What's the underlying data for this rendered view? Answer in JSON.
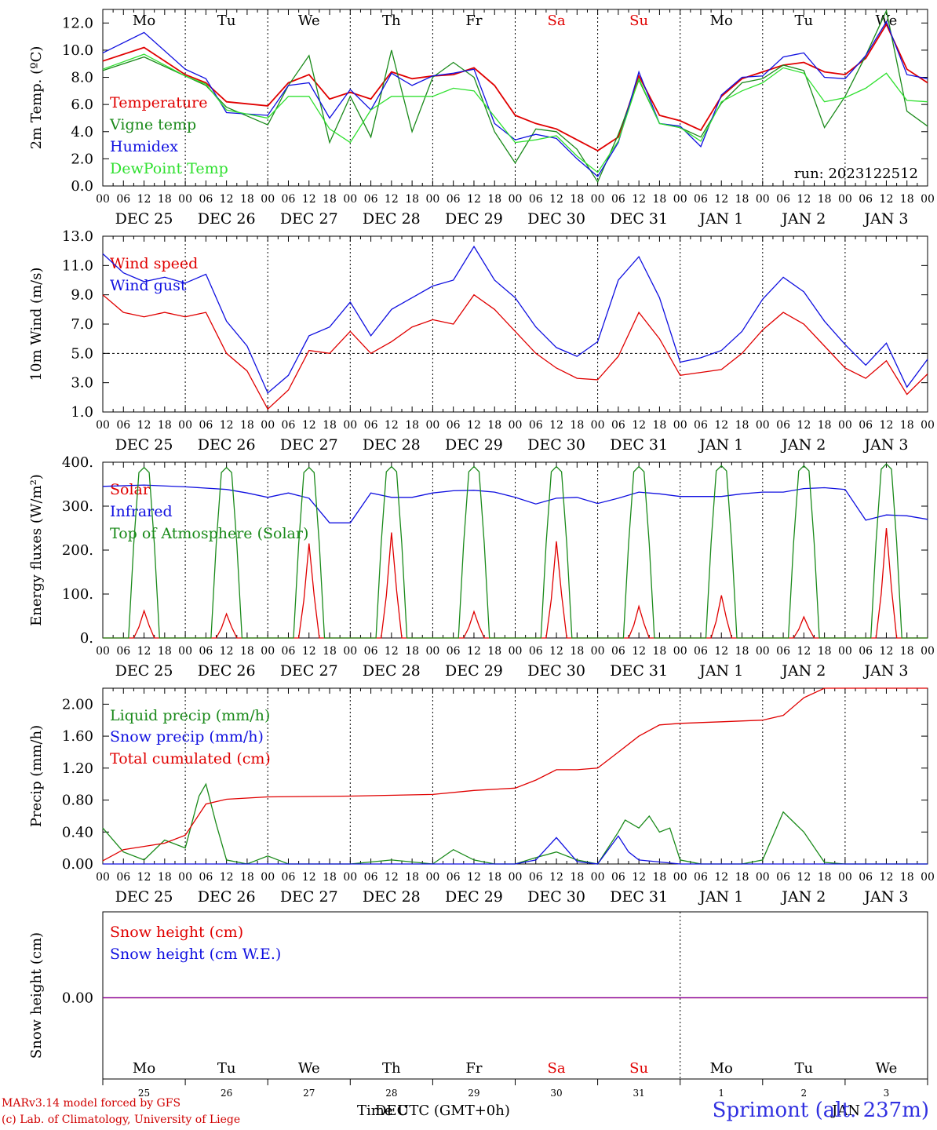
{
  "run_label": "run: 2023122512",
  "weekdays_top": [
    {
      "label": "Mo",
      "color": "#000000"
    },
    {
      "label": "Tu",
      "color": "#000000"
    },
    {
      "label": "We",
      "color": "#000000"
    },
    {
      "label": "Th",
      "color": "#000000"
    },
    {
      "label": "Fr",
      "color": "#000000"
    },
    {
      "label": "Sa",
      "color": "#e00000"
    },
    {
      "label": "Su",
      "color": "#e00000"
    },
    {
      "label": "Mo",
      "color": "#000000"
    },
    {
      "label": "Tu",
      "color": "#000000"
    },
    {
      "label": "We",
      "color": "#000000"
    }
  ],
  "hour_ticks": [
    "00",
    "06",
    "12",
    "18"
  ],
  "date_labels": [
    "DEC 25",
    "DEC 26",
    "DEC 27",
    "DEC 28",
    "DEC 29",
    "DEC 30",
    "DEC 31",
    "JAN  1",
    "JAN  2",
    "JAN  3"
  ],
  "bottom_day_numbers": [
    "25",
    "26",
    "27",
    "28",
    "29",
    "30",
    "31",
    "1",
    "2",
    "3"
  ],
  "footer": {
    "model": "MARv3.14 model forced by GFS",
    "lab": "(c) Lab. of Climatology, University of Liege",
    "xlabel": "Time UTC (GMT+0h)",
    "month_dec": "DEC",
    "month_jan": "JAN",
    "station": "Sprimont (alt. 237m)"
  },
  "colors": {
    "red": "#e00000",
    "green": "#1a8a1a",
    "blue": "#1010e0",
    "light_green": "#30e030",
    "purple": "#8000a0"
  },
  "chart_data": [
    {
      "type": "line",
      "ylabel": "2m Temp. (ºC)",
      "ylim": [
        0,
        13
      ],
      "yticks": [
        "0.0",
        "2.0",
        "4.0",
        "6.0",
        "8.0",
        "10.0",
        "12.0"
      ],
      "x_unit": "hours since DEC 25 00 UTC",
      "series": [
        {
          "name": "Temperature",
          "color": "#e00000",
          "x": [
            0,
            12,
            24,
            30,
            36,
            48,
            54,
            60,
            66,
            72,
            78,
            84,
            90,
            96,
            102,
            108,
            114,
            120,
            126,
            132,
            138,
            144,
            150,
            156,
            162,
            168,
            174,
            180,
            186,
            192,
            198,
            204,
            210,
            216,
            222,
            228,
            234,
            240,
            246,
            252,
            258
          ],
          "y": [
            9.2,
            10.2,
            8.2,
            7.6,
            6.2,
            5.9,
            7.6,
            8.2,
            6.4,
            6.9,
            6.4,
            8.4,
            7.9,
            8.1,
            8.2,
            8.7,
            7.4,
            5.2,
            4.6,
            4.2,
            3.4,
            2.6,
            3.6,
            8.1,
            5.2,
            4.8,
            4.1,
            6.6,
            7.9,
            8.4,
            8.9,
            9.1,
            8.4,
            8.2,
            9.4,
            11.9,
            8.6,
            7.6,
            null,
            null,
            null
          ]
        },
        {
          "name": "Vigne temp",
          "color": "#1a8a1a",
          "x": [
            0,
            12,
            24,
            30,
            36,
            48,
            54,
            60,
            66,
            72,
            78,
            84,
            90,
            96,
            102,
            108,
            114,
            120,
            126,
            132,
            138,
            144,
            150,
            156,
            162,
            168,
            174,
            180,
            186,
            192,
            198,
            204,
            210,
            216,
            222,
            228,
            234,
            240
          ],
          "y": [
            8.5,
            9.5,
            8.1,
            7.4,
            5.8,
            4.5,
            7.4,
            9.6,
            3.2,
            6.6,
            3.6,
            10.0,
            4.0,
            8.0,
            9.1,
            8.0,
            4.0,
            1.7,
            4.2,
            4.0,
            2.7,
            0.3,
            3.8,
            7.8,
            4.6,
            4.3,
            3.6,
            6.1,
            7.6,
            7.9,
            8.9,
            8.5,
            4.3,
            6.6,
            9.6,
            12.9,
            5.5,
            4.4
          ]
        },
        {
          "name": "Humidex",
          "color": "#1010e0",
          "x": [
            0,
            12,
            24,
            30,
            36,
            48,
            54,
            60,
            66,
            72,
            78,
            84,
            90,
            96,
            102,
            108,
            114,
            120,
            126,
            132,
            138,
            144,
            150,
            156,
            162,
            168,
            174,
            180,
            186,
            192,
            198,
            204,
            210,
            216,
            222,
            228,
            234,
            240
          ],
          "y": [
            9.8,
            11.3,
            8.6,
            7.9,
            5.4,
            5.2,
            7.4,
            7.6,
            5.0,
            7.1,
            5.6,
            8.3,
            7.4,
            8.1,
            8.3,
            8.6,
            4.6,
            3.4,
            3.8,
            3.5,
            2.0,
            0.7,
            3.2,
            8.4,
            4.6,
            4.4,
            2.9,
            6.7,
            8.0,
            8.1,
            9.5,
            9.8,
            8.0,
            7.9,
            9.6,
            12.1,
            8.2,
            7.9
          ]
        },
        {
          "name": "DewPoint Temp",
          "color": "#30e030",
          "x": [
            0,
            12,
            24,
            30,
            36,
            48,
            54,
            60,
            66,
            72,
            78,
            84,
            90,
            96,
            102,
            108,
            114,
            120,
            126,
            132,
            138,
            144,
            150,
            156,
            162,
            168,
            174,
            180,
            186,
            192,
            198,
            204,
            210,
            216,
            222,
            228,
            234,
            240
          ],
          "y": [
            8.6,
            9.7,
            8.1,
            7.5,
            5.6,
            5.0,
            6.6,
            6.6,
            4.2,
            3.2,
            5.6,
            6.6,
            6.6,
            6.6,
            7.2,
            7.0,
            5.1,
            3.2,
            3.4,
            3.7,
            2.2,
            1.0,
            3.3,
            7.9,
            4.6,
            4.3,
            3.3,
            6.2,
            7.0,
            7.6,
            8.7,
            8.3,
            6.2,
            6.5,
            7.2,
            8.3,
            6.3,
            6.2
          ]
        }
      ]
    },
    {
      "type": "line",
      "ylabel": "10m Wind (m/s)",
      "ylim": [
        1,
        13
      ],
      "yticks": [
        "1.0",
        "3.0",
        "5.0",
        "7.0",
        "9.0",
        "11.0",
        "13.0"
      ],
      "reference_line": 5,
      "series": [
        {
          "name": "Wind speed",
          "color": "#e00000",
          "x": [
            0,
            6,
            12,
            18,
            24,
            30,
            36,
            42,
            48,
            54,
            60,
            66,
            72,
            78,
            84,
            90,
            96,
            102,
            108,
            114,
            120,
            126,
            132,
            138,
            144,
            150,
            156,
            162,
            168,
            174,
            180,
            186,
            192,
            198,
            204,
            210,
            216,
            222,
            228,
            234,
            240
          ],
          "y": [
            9.0,
            7.8,
            7.5,
            7.8,
            7.5,
            7.8,
            5.0,
            3.8,
            1.2,
            2.5,
            5.2,
            5.0,
            6.5,
            5.0,
            5.8,
            6.8,
            7.3,
            7.0,
            9.0,
            8.0,
            6.5,
            5.0,
            4.0,
            3.3,
            3.2,
            4.8,
            7.8,
            6.0,
            3.5,
            3.7,
            3.9,
            5.0,
            6.6,
            7.8,
            7.0,
            5.5,
            4.0,
            3.3,
            4.5,
            2.2,
            3.6
          ]
        },
        {
          "name": "Wind gust",
          "color": "#1010e0",
          "x": [
            0,
            6,
            12,
            18,
            24,
            30,
            36,
            42,
            48,
            54,
            60,
            66,
            72,
            78,
            84,
            90,
            96,
            102,
            108,
            114,
            120,
            126,
            132,
            138,
            144,
            150,
            156,
            162,
            168,
            174,
            180,
            186,
            192,
            198,
            204,
            210,
            216,
            222,
            228,
            234,
            240
          ],
          "y": [
            11.8,
            10.5,
            9.9,
            10.2,
            9.8,
            10.4,
            7.2,
            5.5,
            2.3,
            3.5,
            6.2,
            6.8,
            8.5,
            6.2,
            8.0,
            8.8,
            9.6,
            10.0,
            12.3,
            10.0,
            8.8,
            6.8,
            5.4,
            4.8,
            5.8,
            10.0,
            11.6,
            8.8,
            4.4,
            4.7,
            5.2,
            6.5,
            8.7,
            10.2,
            9.2,
            7.2,
            5.6,
            4.2,
            5.7,
            2.7,
            4.6
          ]
        }
      ]
    },
    {
      "type": "line",
      "ylabel": "Energy fluxes (W/m²)",
      "ylim": [
        0,
        400
      ],
      "yticks": [
        "0.",
        "100.",
        "200.",
        "300.",
        "400."
      ],
      "series": [
        {
          "name": "Solar",
          "color": "#e00000",
          "daily_peaks": [
            62,
            55,
            215,
            240,
            60,
            220,
            72,
            97,
            48,
            250
          ]
        },
        {
          "name": "Infrared",
          "color": "#1010e0",
          "x": [
            0,
            12,
            24,
            36,
            42,
            48,
            54,
            60,
            66,
            72,
            78,
            84,
            90,
            96,
            102,
            108,
            114,
            120,
            126,
            132,
            138,
            144,
            150,
            156,
            162,
            168,
            174,
            180,
            186,
            192,
            198,
            204,
            210,
            216,
            222,
            228,
            234,
            240
          ],
          "y": [
            345,
            348,
            344,
            338,
            330,
            320,
            330,
            318,
            262,
            262,
            330,
            320,
            320,
            330,
            335,
            336,
            332,
            320,
            305,
            318,
            320,
            306,
            318,
            332,
            328,
            322,
            322,
            322,
            328,
            332,
            332,
            340,
            342,
            338,
            268,
            280,
            278,
            270
          ]
        },
        {
          "name": "Top of Atmosphere (Solar)",
          "color": "#1a8a1a",
          "daily_peaks": [
            388,
            388,
            388,
            390,
            390,
            390,
            390,
            392,
            392,
            396
          ]
        }
      ]
    },
    {
      "type": "line",
      "ylabel": "Precip (mm/h)",
      "ylim": [
        0,
        2.2
      ],
      "yticks": [
        "0.00",
        "0.40",
        "0.80",
        "1.20",
        "1.60",
        "2.00"
      ],
      "series": [
        {
          "name": "Liquid precip (mm/h)",
          "color": "#1a8a1a",
          "x": [
            0,
            6,
            12,
            18,
            24,
            28,
            30,
            33,
            36,
            42,
            48,
            54,
            60,
            72,
            84,
            96,
            102,
            108,
            114,
            120,
            126,
            132,
            138,
            144,
            150,
            152,
            156,
            159,
            162,
            165,
            168,
            174,
            180,
            186,
            192,
            198,
            204,
            210,
            216,
            222,
            228,
            234,
            240
          ],
          "y": [
            0.45,
            0.15,
            0.05,
            0.3,
            0.2,
            0.85,
            1.0,
            0.5,
            0.05,
            0.0,
            0.1,
            0.0,
            0.0,
            0.0,
            0.05,
            0.0,
            0.18,
            0.05,
            0.0,
            0.0,
            0.08,
            0.15,
            0.05,
            0.0,
            0.4,
            0.55,
            0.45,
            0.6,
            0.4,
            0.45,
            0.05,
            0.0,
            0.0,
            0.0,
            0.05,
            0.65,
            0.4,
            0.02,
            0.0,
            0.0,
            0.0,
            0.0,
            0.0
          ]
        },
        {
          "name": "Snow precip (mm/h)",
          "color": "#1010e0",
          "x": [
            0,
            120,
            126,
            132,
            138,
            144,
            150,
            153,
            156,
            168,
            240
          ],
          "y": [
            0,
            0,
            0.05,
            0.33,
            0.03,
            0.0,
            0.35,
            0.15,
            0.05,
            0.0,
            0.0
          ]
        },
        {
          "name": "Total cumulated (cm)",
          "color": "#e00000",
          "x": [
            0,
            6,
            12,
            18,
            24,
            30,
            36,
            48,
            72,
            96,
            108,
            120,
            126,
            132,
            138,
            144,
            150,
            156,
            162,
            168,
            180,
            192,
            198,
            204,
            210,
            216,
            222,
            228,
            234,
            240
          ],
          "y": [
            0.04,
            0.18,
            0.22,
            0.26,
            0.36,
            0.75,
            0.81,
            0.84,
            0.85,
            0.87,
            0.92,
            0.95,
            1.05,
            1.18,
            1.18,
            1.2,
            1.4,
            1.6,
            1.74,
            1.76,
            1.78,
            1.8,
            1.86,
            2.08,
            2.2,
            2.2,
            2.2,
            2.2,
            2.2,
            2.2
          ]
        }
      ]
    },
    {
      "type": "line",
      "ylabel": "Snow height (cm)",
      "yticks": [
        "0.00"
      ],
      "series": [
        {
          "name": "Snow height (cm)",
          "color": "#e00000",
          "x": [
            0,
            240
          ],
          "y": [
            0,
            0
          ]
        },
        {
          "name": "Snow height (cm W.E.)",
          "color": "#1010e0",
          "x": [
            0,
            240
          ],
          "y": [
            0,
            0
          ]
        }
      ]
    }
  ]
}
